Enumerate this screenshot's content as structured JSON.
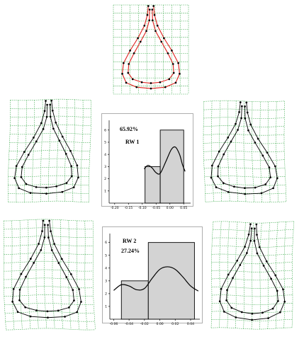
{
  "figure": {
    "center_panel": {
      "name": "consensus-shape",
      "outline_color": "#e0201e"
    },
    "deformation_panels": [
      "rw1-negative",
      "rw1-positive",
      "rw2-negative",
      "rw2-positive"
    ]
  },
  "chart_data": [
    {
      "type": "bar",
      "name": "rw1-histogram",
      "annotation_percent": "65.92%",
      "annotation_label": "RW 1",
      "x_ticks": [
        "-0.20",
        "-0.15",
        "-0.10",
        "-0.05",
        "0.00",
        "0.05"
      ],
      "y_ticks": [
        "1",
        "2",
        "3",
        "4",
        "5",
        "6"
      ],
      "bins": [
        {
          "from": -0.09,
          "to": -0.035,
          "count": 3
        },
        {
          "from": -0.035,
          "to": 0.05,
          "count": 6
        }
      ],
      "ylim": [
        0,
        6.8
      ],
      "xlim": [
        -0.22,
        0.075
      ],
      "density_curve": [
        [
          -0.093,
          2.8
        ],
        [
          -0.08,
          3.1
        ],
        [
          -0.065,
          2.9
        ],
        [
          -0.05,
          2.5
        ],
        [
          -0.035,
          2.45
        ],
        [
          -0.015,
          3.4
        ],
        [
          0.005,
          4.4
        ],
        [
          0.02,
          4.6
        ],
        [
          0.035,
          4.0
        ],
        [
          0.045,
          3.2
        ],
        [
          0.055,
          2.6
        ]
      ]
    },
    {
      "type": "bar",
      "name": "rw2-histogram",
      "annotation_label": "RW 2",
      "annotation_percent": "27.24%",
      "x_ticks": [
        "-0.06",
        "-0.04",
        "-0.02",
        "0.00",
        "0.02",
        "0.04"
      ],
      "y_ticks": [
        "1",
        "2",
        "3",
        "4",
        "5",
        "6"
      ],
      "bins": [
        {
          "from": -0.05,
          "to": -0.015,
          "count": 3
        },
        {
          "from": -0.015,
          "to": 0.045,
          "count": 6
        }
      ],
      "ylim": [
        0,
        6.7
      ],
      "xlim": [
        -0.065,
        0.052
      ],
      "density_curve": [
        [
          -0.06,
          2.25
        ],
        [
          -0.05,
          2.7
        ],
        [
          -0.04,
          2.6
        ],
        [
          -0.03,
          2.3
        ],
        [
          -0.02,
          2.4
        ],
        [
          -0.01,
          3.2
        ],
        [
          0.0,
          3.9
        ],
        [
          0.01,
          4.1
        ],
        [
          0.02,
          3.9
        ],
        [
          0.03,
          3.3
        ],
        [
          0.04,
          2.6
        ],
        [
          0.05,
          2.2
        ]
      ]
    }
  ]
}
